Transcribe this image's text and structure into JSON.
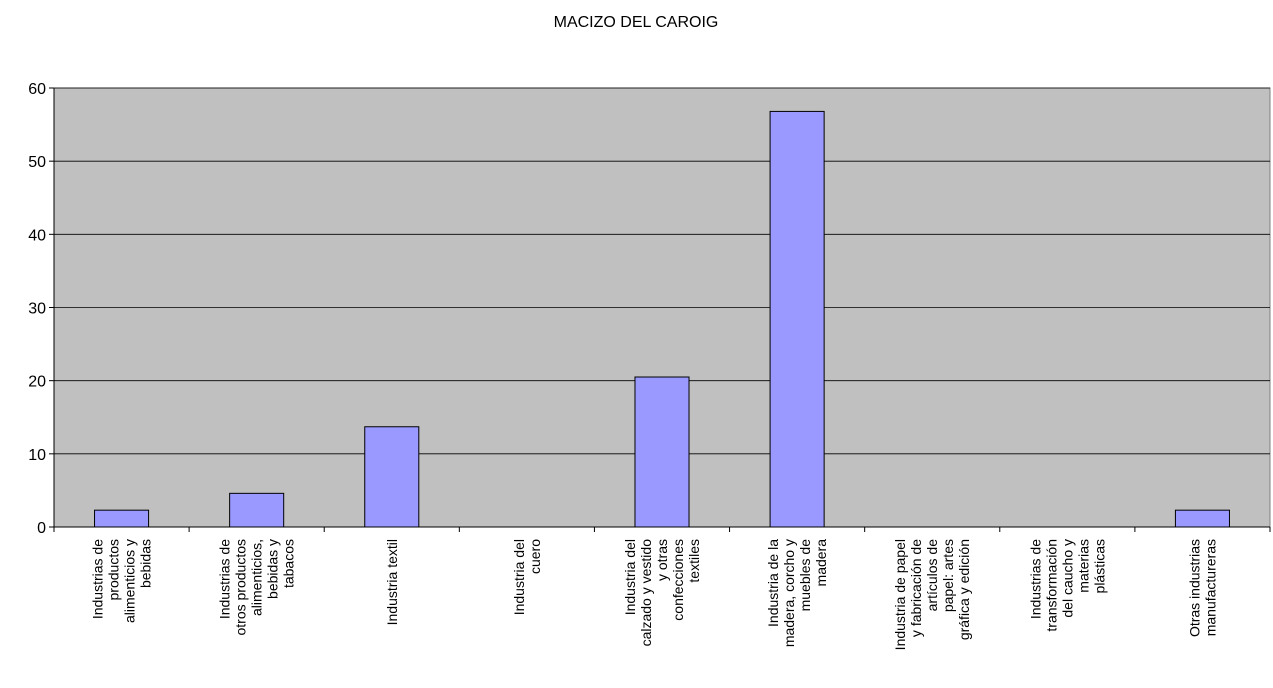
{
  "chart_data": {
    "type": "bar",
    "title": "MACIZO DEL CAROIG",
    "xlabel": "",
    "ylabel": "",
    "ylim": [
      0,
      60
    ],
    "yticks": [
      0,
      10,
      20,
      30,
      40,
      50,
      60
    ],
    "grid": true,
    "legend": "none",
    "colors": {
      "bar": "#9999ff",
      "plot_bg": "#c0c0c0",
      "bar_stroke": "#000000"
    },
    "categories": [
      [
        "Industrias de",
        "productos",
        "alimenticios y",
        "bebidas"
      ],
      [
        "Industrias de",
        "otros productos",
        "alimenticios,",
        "bebidas y",
        "tabacos"
      ],
      [
        "Industria textil"
      ],
      [
        "Industria del",
        "cuero"
      ],
      [
        "Industria del",
        "calzado y vestido",
        "y otras",
        "confecciones",
        "textiles"
      ],
      [
        "Industria de la",
        "madera, corcho y",
        "muebles de",
        "madera"
      ],
      [
        "Industria de papel",
        "y fabricación de",
        "artículos de",
        "papel: artes",
        "gráfica y edición"
      ],
      [
        "Industrias de",
        "transformación",
        "del caucho y",
        "materias",
        "plásticas"
      ],
      [
        "Otras industrias",
        "manufactureras"
      ]
    ],
    "values": [
      2.3,
      4.6,
      13.7,
      0,
      20.5,
      56.8,
      0,
      0,
      2.3
    ]
  }
}
